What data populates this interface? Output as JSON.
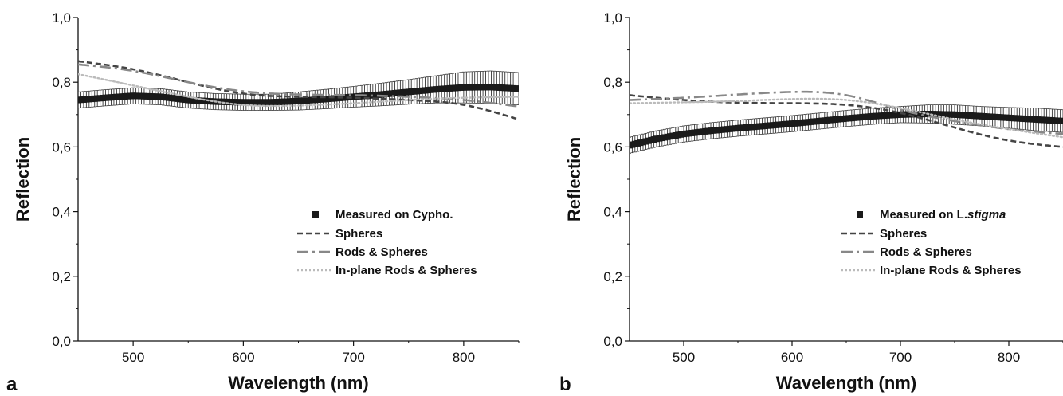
{
  "chart_data": [
    {
      "type": "line",
      "panel_label": "a",
      "xlabel": "Wavelength (nm)",
      "ylabel": "Reflection",
      "xlim": [
        450,
        850
      ],
      "ylim": [
        0.0,
        1.0
      ],
      "xticks": [
        500,
        600,
        700,
        800
      ],
      "xtick_labels": [
        "500",
        "600",
        "700",
        "800"
      ],
      "yticks": [
        0.0,
        0.2,
        0.4,
        0.6,
        0.8,
        1.0
      ],
      "ytick_labels": [
        "0,0",
        "0,2",
        "0,4",
        "0,6",
        "0,8",
        "1,0"
      ],
      "legend_position": "lower-right",
      "measured": {
        "name": "Measured on Cypho.",
        "name_parts": [
          {
            "text": "Measured on Cypho.",
            "italic": false
          }
        ],
        "x": [
          450,
          475,
          500,
          525,
          550,
          575,
          600,
          625,
          650,
          675,
          700,
          725,
          750,
          775,
          800,
          825,
          850
        ],
        "y": [
          0.745,
          0.752,
          0.758,
          0.755,
          0.745,
          0.74,
          0.738,
          0.738,
          0.742,
          0.748,
          0.755,
          0.762,
          0.77,
          0.778,
          0.784,
          0.785,
          0.78
        ],
        "err": [
          0.025,
          0.025,
          0.025,
          0.025,
          0.025,
          0.025,
          0.025,
          0.025,
          0.028,
          0.03,
          0.032,
          0.035,
          0.038,
          0.042,
          0.048,
          0.05,
          0.05
        ]
      },
      "series": [
        {
          "name": "Spheres",
          "style": "dashed",
          "color": "#444444",
          "x": [
            450,
            500,
            550,
            600,
            650,
            700,
            750,
            800,
            850
          ],
          "y": [
            0.865,
            0.84,
            0.8,
            0.765,
            0.755,
            0.752,
            0.745,
            0.73,
            0.685
          ]
        },
        {
          "name": "Rods & Spheres",
          "style": "dashdot",
          "color": "#888888",
          "x": [
            450,
            500,
            550,
            600,
            650,
            700,
            750,
            800,
            850
          ],
          "y": [
            0.855,
            0.835,
            0.8,
            0.772,
            0.762,
            0.76,
            0.755,
            0.745,
            0.725
          ]
        },
        {
          "name": "In-plane Rods & Spheres",
          "style": "dotted",
          "color": "#bbbbbb",
          "x": [
            450,
            500,
            550,
            600,
            650,
            700,
            750,
            800,
            850
          ],
          "y": [
            0.825,
            0.79,
            0.755,
            0.73,
            0.728,
            0.735,
            0.745,
            0.752,
            0.755
          ]
        }
      ]
    },
    {
      "type": "line",
      "panel_label": "b",
      "xlabel": "Wavelength (nm)",
      "ylabel": "Reflection",
      "xlim": [
        450,
        850
      ],
      "ylim": [
        0.0,
        1.0
      ],
      "xticks": [
        500,
        600,
        700,
        800
      ],
      "xtick_labels": [
        "500",
        "600",
        "700",
        "800"
      ],
      "yticks": [
        0.0,
        0.2,
        0.4,
        0.6,
        0.8,
        1.0
      ],
      "ytick_labels": [
        "0,0",
        "0,2",
        "0,4",
        "0,6",
        "0,8",
        "1,0"
      ],
      "legend_position": "lower-right",
      "measured": {
        "name": "Measured on L.stigma",
        "name_parts": [
          {
            "text": "Measured on L.",
            "italic": false
          },
          {
            "text": "stigma",
            "italic": true
          }
        ],
        "x": [
          450,
          475,
          500,
          525,
          550,
          575,
          600,
          625,
          650,
          675,
          700,
          725,
          750,
          775,
          800,
          825,
          850
        ],
        "y": [
          0.605,
          0.625,
          0.64,
          0.65,
          0.658,
          0.665,
          0.672,
          0.68,
          0.688,
          0.695,
          0.7,
          0.702,
          0.7,
          0.695,
          0.69,
          0.685,
          0.68
        ],
        "err": [
          0.025,
          0.025,
          0.025,
          0.025,
          0.025,
          0.025,
          0.025,
          0.025,
          0.025,
          0.025,
          0.025,
          0.028,
          0.03,
          0.03,
          0.032,
          0.035,
          0.035
        ]
      },
      "series": [
        {
          "name": "Spheres",
          "style": "dashed",
          "color": "#444444",
          "x": [
            450,
            500,
            550,
            600,
            650,
            700,
            750,
            800,
            850
          ],
          "y": [
            0.76,
            0.745,
            0.737,
            0.735,
            0.73,
            0.705,
            0.66,
            0.62,
            0.6
          ]
        },
        {
          "name": "Rods & Spheres",
          "style": "dashdot",
          "color": "#888888",
          "x": [
            450,
            500,
            550,
            600,
            650,
            700,
            750,
            800,
            850
          ],
          "y": [
            0.745,
            0.752,
            0.762,
            0.77,
            0.76,
            0.715,
            0.68,
            0.655,
            0.64
          ]
        },
        {
          "name": "In-plane Rods & Spheres",
          "style": "dotted",
          "color": "#bbbbbb",
          "x": [
            450,
            500,
            550,
            600,
            650,
            700,
            750,
            800,
            850
          ],
          "y": [
            0.735,
            0.738,
            0.742,
            0.748,
            0.745,
            0.72,
            0.685,
            0.655,
            0.63
          ]
        }
      ]
    }
  ]
}
